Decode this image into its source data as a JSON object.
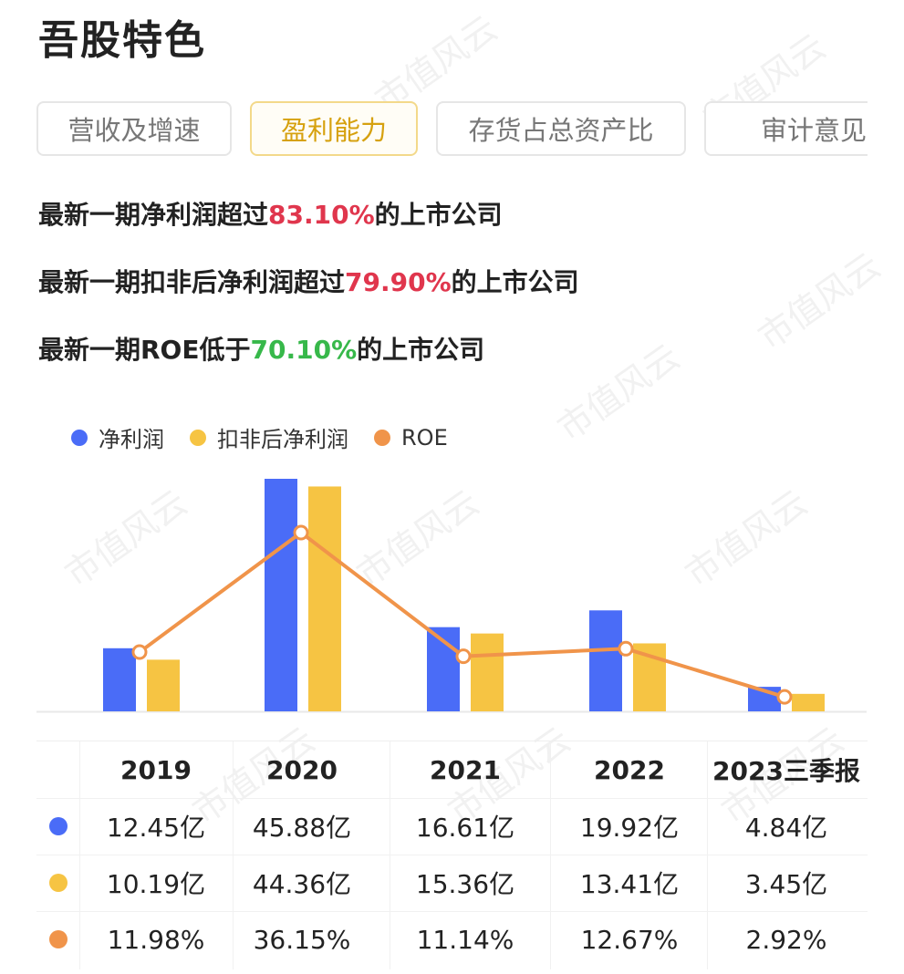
{
  "title": "吾股特色",
  "tabs": [
    "营收及增速",
    "盈利能力",
    "存货占总资产比",
    "审计意见"
  ],
  "active_tab": 1,
  "stats": [
    {
      "prefix": "最新一期净利润超过",
      "value": "83.10%",
      "suffix": "的上市公司"
    },
    {
      "prefix": "最新一期扣非后净利润超过",
      "value": "79.90%",
      "suffix": "的上市公司"
    },
    {
      "prefix": "最新一期ROE低于",
      "value": "70.10%",
      "suffix": "的上市公司"
    }
  ],
  "colors": {
    "net_profit": "#4a6cf7",
    "deducted": "#f6c443",
    "roe": "#f0944a",
    "red": "#e0364d",
    "green": "#37b84a"
  },
  "watermark": "市值风云",
  "chart_data": {
    "type": "bar",
    "categories": [
      "2019",
      "2020",
      "2021",
      "2022",
      "2023三季报"
    ],
    "series": [
      {
        "name": "净利润",
        "values": [
          12.45,
          45.88,
          16.61,
          19.92,
          4.84
        ],
        "unit": "亿",
        "color": "#4a6cf7"
      },
      {
        "name": "扣非后净利润",
        "values": [
          10.19,
          44.36,
          15.36,
          13.41,
          3.45
        ],
        "unit": "亿",
        "color": "#f6c443"
      },
      {
        "name": "ROE",
        "type": "line",
        "values": [
          11.98,
          36.15,
          11.14,
          12.67,
          2.92
        ],
        "unit": "%",
        "color": "#f0944a"
      }
    ],
    "legend": "top-left",
    "grid": false
  },
  "table": {
    "headers": [
      "2019",
      "2020",
      "2021",
      "2022",
      "2023三季报"
    ],
    "rows": [
      [
        "12.45亿",
        "45.88亿",
        "16.61亿",
        "19.92亿",
        "4.84亿"
      ],
      [
        "10.19亿",
        "44.36亿",
        "15.36亿",
        "13.41亿",
        "3.45亿"
      ],
      [
        "11.98%",
        "36.15%",
        "11.14%",
        "12.67%",
        "2.92%"
      ]
    ]
  }
}
